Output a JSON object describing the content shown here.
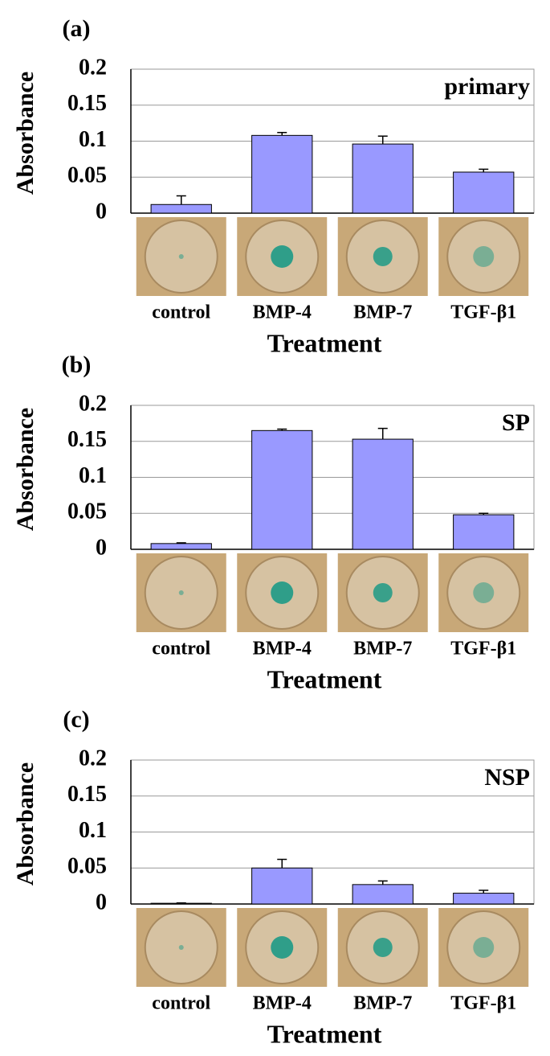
{
  "chart_data": [
    {
      "type": "bar",
      "panel_label": "(a)",
      "title": "primary",
      "y_label": "Absorbance",
      "x_label": "Treatment",
      "categories": [
        "control",
        "BMP-4",
        "BMP-7",
        "TGF-β1"
      ],
      "values": [
        0.012,
        0.108,
        0.096,
        0.057
      ],
      "errors": [
        0.012,
        0.004,
        0.011,
        0.004
      ],
      "color": "#9999ff",
      "ylim": [
        0,
        0.2
      ],
      "yticks": [
        0,
        0.05,
        0.1,
        0.15,
        0.2
      ],
      "grid": true
    },
    {
      "type": "bar",
      "panel_label": "(b)",
      "title": "SP",
      "y_label": "Absorbance",
      "x_label": "Treatment",
      "categories": [
        "control",
        "BMP-4",
        "BMP-7",
        "TGF-β1"
      ],
      "values": [
        0.008,
        0.165,
        0.153,
        0.048
      ],
      "errors": [
        0.001,
        0.002,
        0.015,
        0.002
      ],
      "color": "#9999ff",
      "ylim": [
        0,
        0.2
      ],
      "yticks": [
        0,
        0.05,
        0.1,
        0.15,
        0.2
      ],
      "grid": true
    },
    {
      "type": "bar",
      "panel_label": "(c)",
      "title": "NSP",
      "y_label": "Absorbance",
      "x_label": "Treatment",
      "categories": [
        "control",
        "BMP-4",
        "BMP-7",
        "TGF-β1"
      ],
      "values": [
        0.001,
        0.05,
        0.027,
        0.015
      ],
      "errors": [
        0.0005,
        0.012,
        0.005,
        0.004
      ],
      "color": "#9999ff",
      "ylim": [
        0,
        0.2
      ],
      "yticks": [
        0,
        0.05,
        0.1,
        0.15,
        0.2
      ],
      "grid": true
    }
  ]
}
